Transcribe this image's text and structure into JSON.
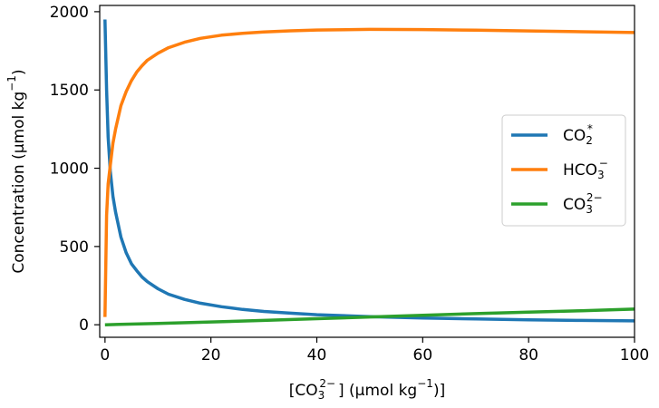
{
  "chart_data": {
    "type": "line",
    "xlabel": {
      "prefix": "[CO",
      "sub": "3",
      "sup": "2−",
      "suffix": "] (µmol kg",
      "unit_sup": "−1",
      "end": ")]"
    },
    "ylabel": {
      "text": "Concentration (µmol kg",
      "unit_sup": "−1",
      "end": ")"
    },
    "xlim": [
      -1,
      100
    ],
    "ylim": [
      -80,
      2040
    ],
    "x_ticks": [
      0,
      20,
      40,
      60,
      80,
      100
    ],
    "y_ticks": [
      0,
      500,
      1000,
      1500,
      2000
    ],
    "legend_position": "center-right",
    "grid": false,
    "series": [
      {
        "name": {
          "base": "CO",
          "sub": "2",
          "sup": "*"
        },
        "color": "#1f77b4",
        "x": [
          0,
          0.3,
          0.6,
          1,
          1.5,
          2,
          3,
          4,
          5,
          6,
          7,
          8,
          10,
          12,
          15,
          18,
          22,
          26,
          30,
          35,
          40,
          50,
          60,
          70,
          80,
          90,
          100
        ],
        "y": [
          1950,
          1500,
          1200,
          980,
          820,
          720,
          560,
          460,
          390,
          345,
          305,
          275,
          230,
          195,
          162,
          138,
          115,
          98,
          85,
          74,
          64,
          52,
          43,
          37,
          32,
          28,
          25
        ]
      },
      {
        "name": {
          "base": "HCO",
          "sub": "3",
          "sup": "−"
        },
        "color": "#ff7f0e",
        "x": [
          0,
          0.3,
          0.6,
          1,
          1.5,
          2,
          3,
          4,
          5,
          6,
          7,
          8,
          10,
          12,
          15,
          18,
          22,
          26,
          30,
          35,
          40,
          50,
          60,
          70,
          80,
          90,
          100
        ],
        "y": [
          50,
          700,
          900,
          1020,
          1160,
          1250,
          1400,
          1490,
          1560,
          1615,
          1655,
          1690,
          1735,
          1770,
          1805,
          1830,
          1850,
          1862,
          1870,
          1878,
          1883,
          1887,
          1886,
          1882,
          1877,
          1872,
          1867
        ]
      },
      {
        "name": {
          "base": "CO",
          "sub": "3",
          "sup": "2−"
        },
        "color": "#2ca02c",
        "x": [
          0,
          10,
          20,
          30,
          40,
          50,
          60,
          70,
          80,
          90,
          100
        ],
        "y": [
          0,
          8,
          18,
          28,
          39,
          50,
          61,
          71,
          81,
          90,
          100
        ]
      }
    ]
  }
}
